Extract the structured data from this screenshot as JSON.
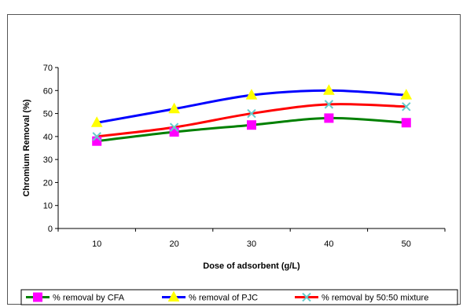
{
  "chart_data": {
    "type": "line",
    "x": [
      10,
      20,
      30,
      40,
      50
    ],
    "xlabel": "Dose of adsorbent (g/L)",
    "ylabel": "Chromium Removal (%)",
    "ylim": [
      0,
      70
    ],
    "yticks": [
      0,
      10,
      20,
      30,
      40,
      50,
      60,
      70
    ],
    "grid": false,
    "legend_position": "bottom",
    "series": [
      {
        "name": "% removal by CFA",
        "values": [
          38,
          42,
          45,
          48,
          46
        ],
        "color": "#008000",
        "marker": "square",
        "marker_color": "#ff00ff"
      },
      {
        "name": "% removal of PJC",
        "values": [
          46,
          52,
          58,
          60,
          58
        ],
        "color": "#0000ff",
        "marker": "triangle",
        "marker_color": "#ffff00"
      },
      {
        "name": "% removal by 50:50 mixture",
        "values": [
          40,
          44,
          50,
          54,
          53
        ],
        "color": "#ff0000",
        "marker": "x",
        "marker_color": "#66cccc"
      }
    ]
  }
}
